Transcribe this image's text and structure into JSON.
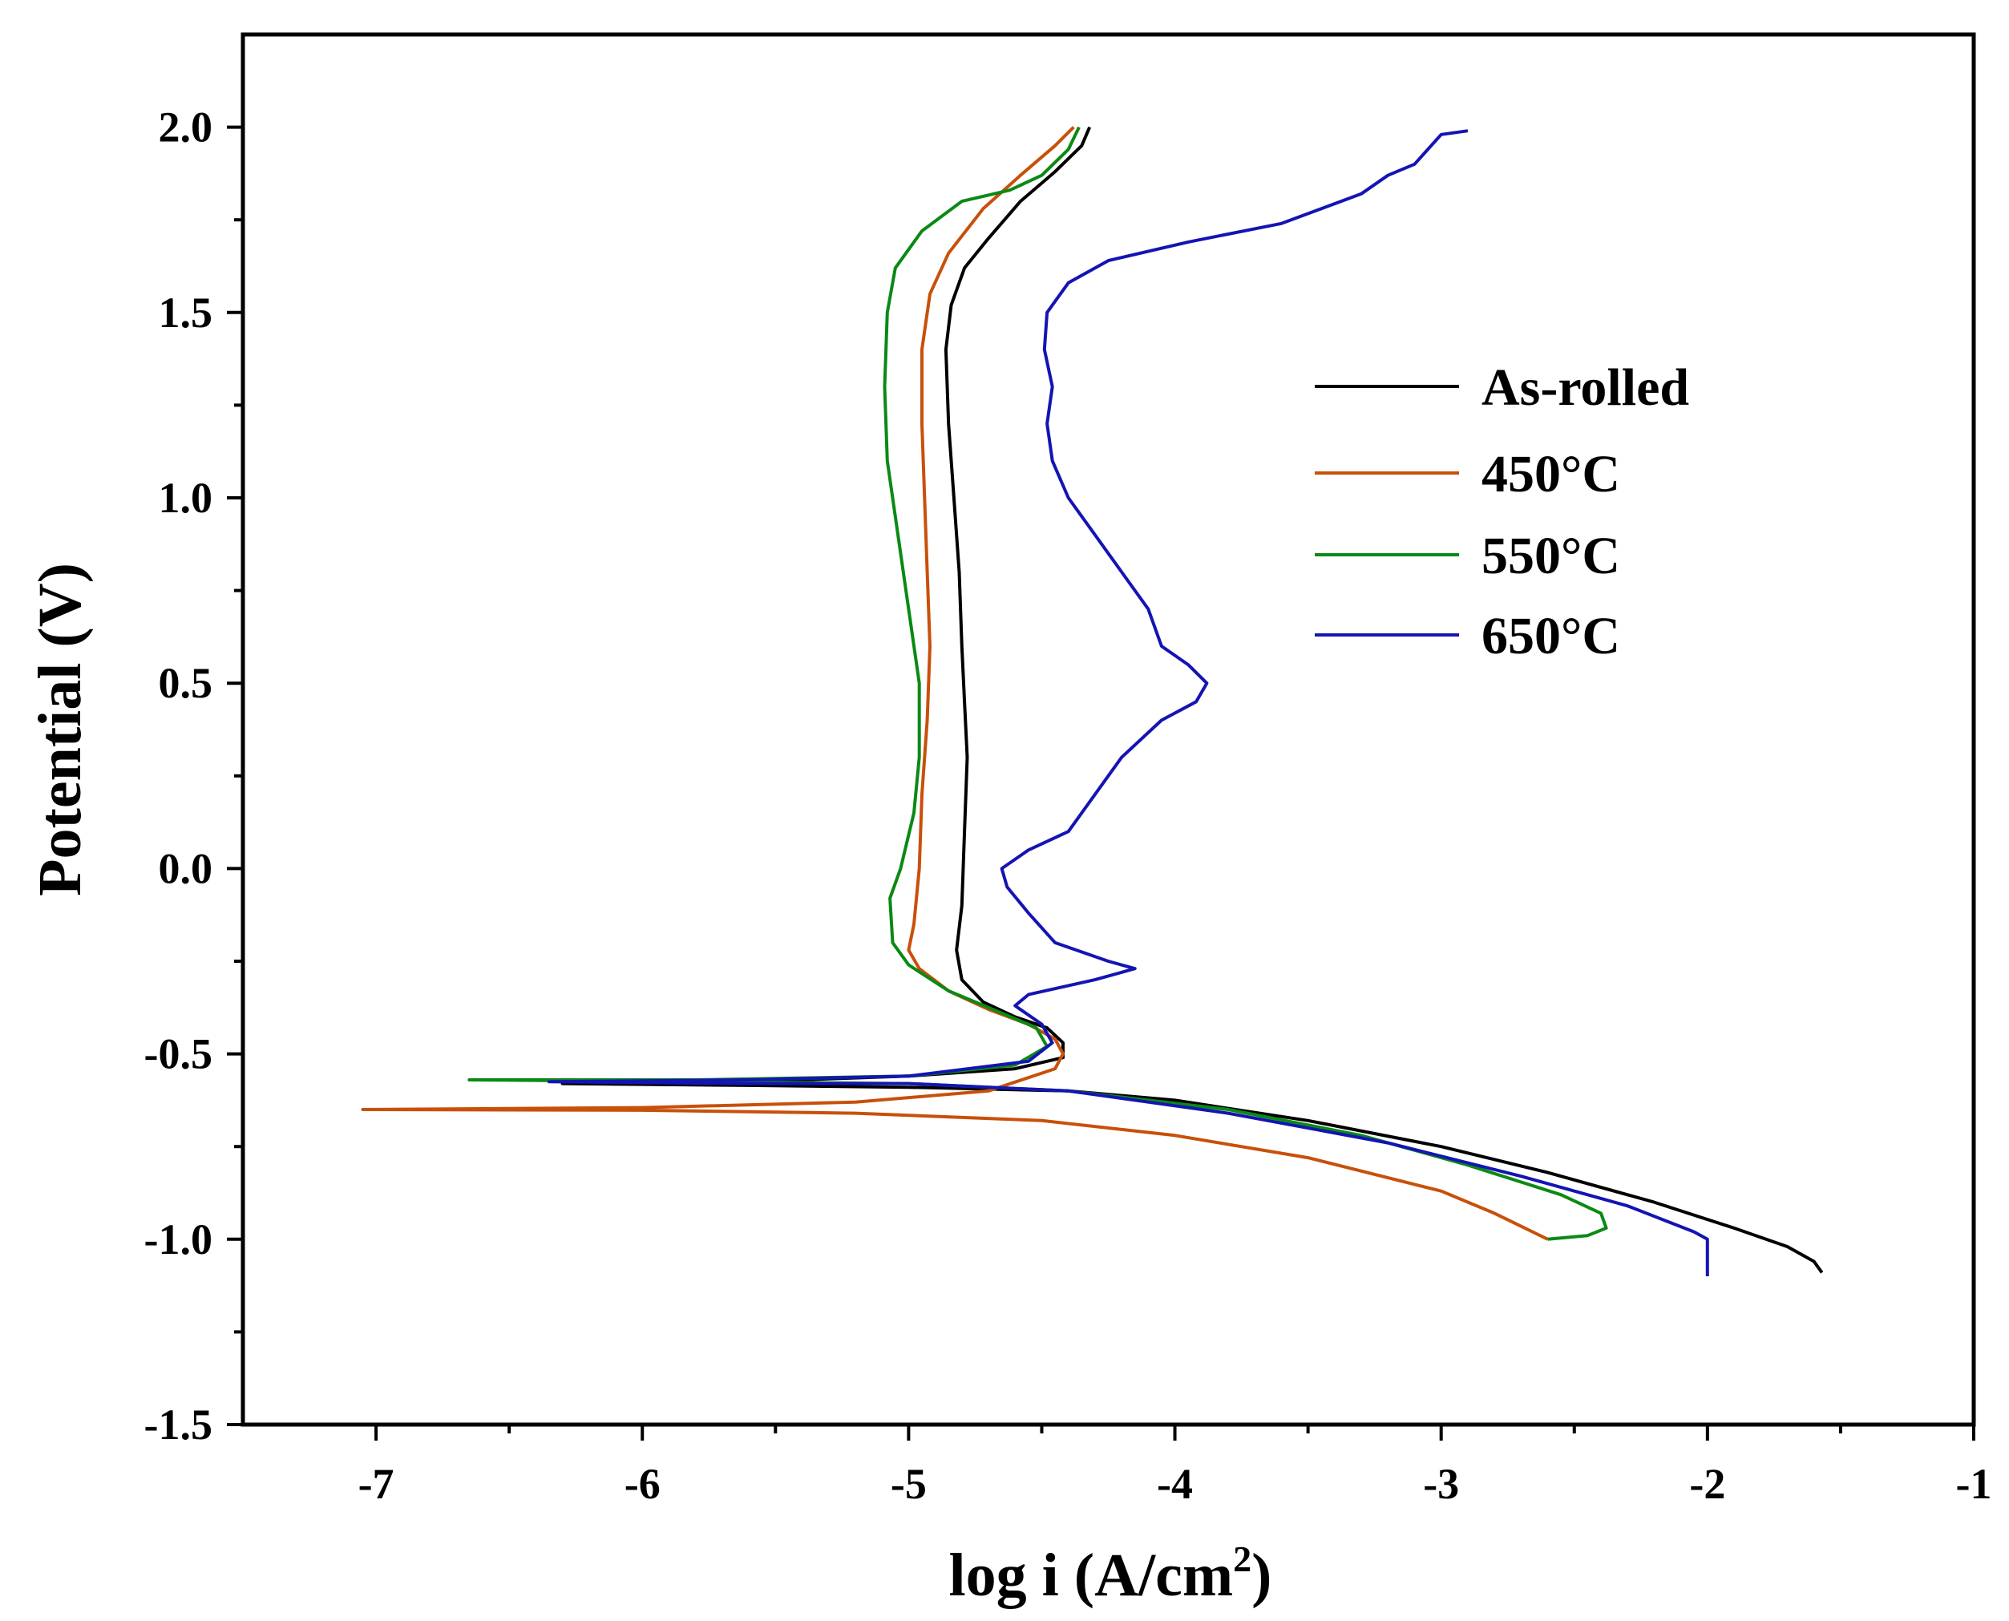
{
  "chart_data": {
    "type": "line",
    "title": "",
    "xlabel": "log i (A/cm",
    "xlabel_sup": "2",
    "xlabel_close": ")",
    "ylabel": "Potential (V)",
    "xlim": [
      -7.5,
      -1
    ],
    "ylim": [
      -1.5,
      2.25
    ],
    "x_ticks": [
      -7,
      -6,
      -5,
      -4,
      -3,
      -2,
      -1
    ],
    "x_tick_labels": [
      "-7",
      "-6",
      "-5",
      "-4",
      "-3",
      "-2",
      "-1"
    ],
    "y_ticks": [
      -1.5,
      -1.0,
      -0.5,
      0.0,
      0.5,
      1.0,
      1.5,
      2.0
    ],
    "y_tick_labels": [
      "-1.5",
      "-1.0",
      "-0.5",
      "0.0",
      "0.5",
      "1.0",
      "1.5",
      "2.0"
    ],
    "grid": false,
    "legend_position": "right-center",
    "series": [
      {
        "name": "As-rolled",
        "color": "#000000",
        "points": [
          [
            -4.32,
            2.0
          ],
          [
            -4.35,
            1.95
          ],
          [
            -4.45,
            1.88
          ],
          [
            -4.58,
            1.8
          ],
          [
            -4.7,
            1.7
          ],
          [
            -4.79,
            1.62
          ],
          [
            -4.84,
            1.52
          ],
          [
            -4.86,
            1.4
          ],
          [
            -4.85,
            1.2
          ],
          [
            -4.83,
            1.0
          ],
          [
            -4.81,
            0.8
          ],
          [
            -4.8,
            0.6
          ],
          [
            -4.79,
            0.45
          ],
          [
            -4.78,
            0.3
          ],
          [
            -4.79,
            0.1
          ],
          [
            -4.8,
            -0.1
          ],
          [
            -4.82,
            -0.22
          ],
          [
            -4.8,
            -0.3
          ],
          [
            -4.72,
            -0.36
          ],
          [
            -4.6,
            -0.4
          ],
          [
            -4.48,
            -0.43
          ],
          [
            -4.42,
            -0.47
          ],
          [
            -4.42,
            -0.51
          ],
          [
            -4.6,
            -0.54
          ],
          [
            -5.0,
            -0.56
          ],
          [
            -5.6,
            -0.575
          ],
          [
            -6.3,
            -0.58
          ],
          [
            -5.6,
            -0.585
          ],
          [
            -5.0,
            -0.59
          ],
          [
            -4.4,
            -0.6
          ],
          [
            -4.0,
            -0.625
          ],
          [
            -3.5,
            -0.68
          ],
          [
            -3.0,
            -0.75
          ],
          [
            -2.6,
            -0.82
          ],
          [
            -2.2,
            -0.9
          ],
          [
            -1.9,
            -0.97
          ],
          [
            -1.7,
            -1.02
          ],
          [
            -1.6,
            -1.06
          ],
          [
            -1.57,
            -1.09
          ]
        ]
      },
      {
        "name": "450°C",
        "color": "#c8500a",
        "points": [
          [
            -4.38,
            2.0
          ],
          [
            -4.45,
            1.95
          ],
          [
            -4.58,
            1.87
          ],
          [
            -4.72,
            1.78
          ],
          [
            -4.85,
            1.66
          ],
          [
            -4.92,
            1.55
          ],
          [
            -4.95,
            1.4
          ],
          [
            -4.95,
            1.2
          ],
          [
            -4.94,
            1.0
          ],
          [
            -4.93,
            0.8
          ],
          [
            -4.92,
            0.6
          ],
          [
            -4.93,
            0.4
          ],
          [
            -4.95,
            0.2
          ],
          [
            -4.96,
            0.0
          ],
          [
            -4.98,
            -0.15
          ],
          [
            -5.0,
            -0.22
          ],
          [
            -4.96,
            -0.27
          ],
          [
            -4.85,
            -0.33
          ],
          [
            -4.7,
            -0.38
          ],
          [
            -4.55,
            -0.42
          ],
          [
            -4.45,
            -0.46
          ],
          [
            -4.42,
            -0.5
          ],
          [
            -4.45,
            -0.54
          ],
          [
            -4.7,
            -0.6
          ],
          [
            -5.2,
            -0.63
          ],
          [
            -6.0,
            -0.645
          ],
          [
            -7.05,
            -0.65
          ],
          [
            -6.0,
            -0.652
          ],
          [
            -5.2,
            -0.66
          ],
          [
            -4.5,
            -0.68
          ],
          [
            -4.0,
            -0.72
          ],
          [
            -3.5,
            -0.78
          ],
          [
            -3.0,
            -0.87
          ],
          [
            -2.8,
            -0.93
          ],
          [
            -2.6,
            -1.0
          ]
        ]
      },
      {
        "name": "550°C",
        "color": "#0a8a14",
        "points": [
          [
            -4.36,
            2.0
          ],
          [
            -4.4,
            1.94
          ],
          [
            -4.5,
            1.87
          ],
          [
            -4.62,
            1.83
          ],
          [
            -4.8,
            1.8
          ],
          [
            -4.95,
            1.72
          ],
          [
            -5.05,
            1.62
          ],
          [
            -5.08,
            1.5
          ],
          [
            -5.09,
            1.3
          ],
          [
            -5.08,
            1.1
          ],
          [
            -5.04,
            0.9
          ],
          [
            -5.0,
            0.7
          ],
          [
            -4.96,
            0.5
          ],
          [
            -4.96,
            0.3
          ],
          [
            -4.98,
            0.15
          ],
          [
            -5.03,
            0.0
          ],
          [
            -5.07,
            -0.08
          ],
          [
            -5.06,
            -0.2
          ],
          [
            -5.0,
            -0.26
          ],
          [
            -4.85,
            -0.33
          ],
          [
            -4.65,
            -0.39
          ],
          [
            -4.52,
            -0.43
          ],
          [
            -4.48,
            -0.48
          ],
          [
            -4.6,
            -0.53
          ],
          [
            -5.0,
            -0.56
          ],
          [
            -5.8,
            -0.57
          ],
          [
            -6.65,
            -0.57
          ],
          [
            -5.8,
            -0.575
          ],
          [
            -5.0,
            -0.58
          ],
          [
            -4.4,
            -0.6
          ],
          [
            -3.8,
            -0.65
          ],
          [
            -3.3,
            -0.72
          ],
          [
            -2.9,
            -0.8
          ],
          [
            -2.55,
            -0.88
          ],
          [
            -2.4,
            -0.93
          ],
          [
            -2.38,
            -0.97
          ],
          [
            -2.45,
            -0.99
          ],
          [
            -2.6,
            -1.0
          ]
        ]
      },
      {
        "name": "650°C",
        "color": "#1414b4",
        "points": [
          [
            -2.9,
            1.99
          ],
          [
            -3.0,
            1.98
          ],
          [
            -3.1,
            1.9
          ],
          [
            -3.2,
            1.87
          ],
          [
            -3.3,
            1.82
          ],
          [
            -3.6,
            1.74
          ],
          [
            -3.95,
            1.69
          ],
          [
            -4.25,
            1.64
          ],
          [
            -4.4,
            1.58
          ],
          [
            -4.48,
            1.5
          ],
          [
            -4.49,
            1.4
          ],
          [
            -4.46,
            1.3
          ],
          [
            -4.48,
            1.2
          ],
          [
            -4.46,
            1.1
          ],
          [
            -4.4,
            1.0
          ],
          [
            -4.3,
            0.9
          ],
          [
            -4.2,
            0.8
          ],
          [
            -4.1,
            0.7
          ],
          [
            -4.05,
            0.6
          ],
          [
            -3.95,
            0.55
          ],
          [
            -3.88,
            0.5
          ],
          [
            -3.92,
            0.45
          ],
          [
            -4.05,
            0.4
          ],
          [
            -4.2,
            0.3
          ],
          [
            -4.3,
            0.2
          ],
          [
            -4.4,
            0.1
          ],
          [
            -4.55,
            0.05
          ],
          [
            -4.65,
            0.0
          ],
          [
            -4.63,
            -0.05
          ],
          [
            -4.55,
            -0.12
          ],
          [
            -4.45,
            -0.2
          ],
          [
            -4.25,
            -0.25
          ],
          [
            -4.15,
            -0.27
          ],
          [
            -4.3,
            -0.3
          ],
          [
            -4.55,
            -0.34
          ],
          [
            -4.6,
            -0.37
          ],
          [
            -4.5,
            -0.42
          ],
          [
            -4.46,
            -0.47
          ],
          [
            -4.55,
            -0.52
          ],
          [
            -5.0,
            -0.56
          ],
          [
            -5.6,
            -0.57
          ],
          [
            -6.35,
            -0.575
          ],
          [
            -5.6,
            -0.58
          ],
          [
            -5.0,
            -0.58
          ],
          [
            -4.4,
            -0.6
          ],
          [
            -3.8,
            -0.66
          ],
          [
            -3.2,
            -0.74
          ],
          [
            -2.7,
            -0.83
          ],
          [
            -2.3,
            -0.91
          ],
          [
            -2.05,
            -0.98
          ],
          [
            -2.0,
            -1.0
          ],
          [
            -2.0,
            -1.1
          ]
        ]
      }
    ]
  }
}
